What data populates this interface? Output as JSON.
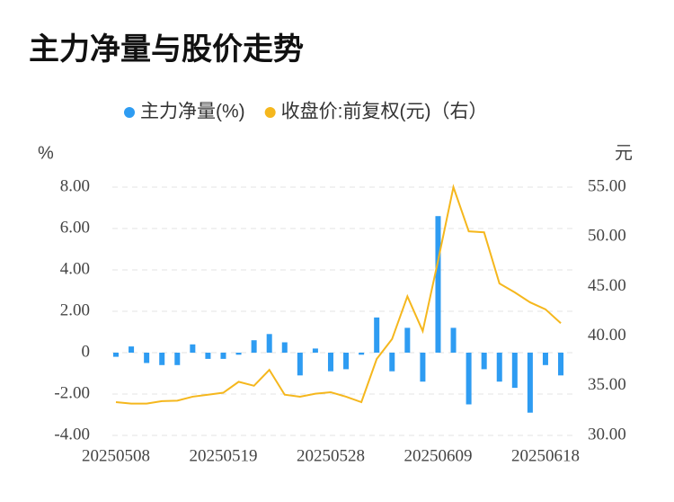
{
  "chart_data": {
    "type": "bar-line",
    "title": "主力净量与股价走势",
    "y_label": "%",
    "y2_label": "元",
    "categories": [
      "20250508",
      null,
      null,
      null,
      null,
      null,
      null,
      "20250519",
      null,
      null,
      null,
      null,
      null,
      null,
      "20250528",
      null,
      null,
      null,
      null,
      null,
      null,
      "20250609",
      null,
      null,
      null,
      null,
      null,
      null,
      "20250618",
      null
    ],
    "series": [
      {
        "name": "主力净量(%)",
        "color": "#2e9cf2",
        "type": "bar",
        "values": [
          -0.2,
          0.3,
          -0.5,
          -0.6,
          -0.6,
          0.4,
          -0.3,
          -0.3,
          -0.1,
          0.6,
          0.9,
          0.5,
          -1.1,
          0.2,
          -0.9,
          -0.8,
          -0.1,
          1.7,
          -0.9,
          1.2,
          -1.4,
          6.6,
          1.2,
          -2.5,
          -0.8,
          -1.4,
          -1.7,
          -2.9,
          -0.6,
          -1.1
        ]
      },
      {
        "name": "收盘价:前复权(元)（右）",
        "color": "#f5b71d",
        "type": "line",
        "axis": "y2",
        "values": [
          33.35,
          33.2,
          33.2,
          33.45,
          33.5,
          33.9,
          34.1,
          34.3,
          35.4,
          35.0,
          36.6,
          34.1,
          33.9,
          34.2,
          34.35,
          33.9,
          33.35,
          37.7,
          39.7,
          44.0,
          40.5,
          47.6,
          55.0,
          50.55,
          50.45,
          45.3,
          44.4,
          43.4,
          42.7,
          41.3
        ]
      }
    ],
    "ylim": [
      -4,
      8
    ],
    "yticks": [
      {
        "value": -4,
        "label": "-4.00"
      },
      {
        "value": -2,
        "label": "-2.00"
      },
      0,
      {
        "value": 2,
        "label": "2.00"
      },
      {
        "value": 4,
        "label": "4.00"
      },
      {
        "value": 6,
        "label": "6.00"
      },
      {
        "value": 8,
        "label": "8.00"
      }
    ],
    "y2lim": [
      30,
      55
    ],
    "y2ticks": [
      {
        "value": 30,
        "label": "30.00"
      },
      {
        "value": 35,
        "label": "35.00"
      },
      {
        "value": 40,
        "label": "40.00"
      },
      {
        "value": 45,
        "label": "45.00"
      },
      {
        "value": 50,
        "label": "50.00"
      },
      {
        "value": 55,
        "label": "55.00"
      }
    ],
    "grid": true,
    "legend": "top"
  }
}
